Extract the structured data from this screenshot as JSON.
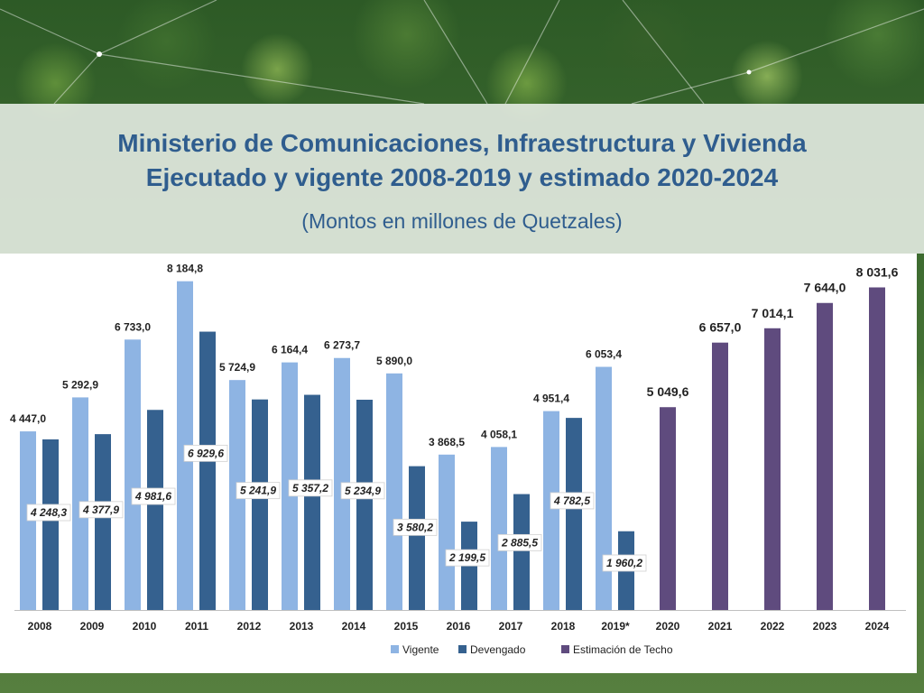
{
  "title_line1": "Ministerio de Comunicaciones, Infraestructura y Vivienda",
  "title_line2": "Ejecutado y vigente 2008-2019 y estimado 2020-2024",
  "subtitle": "(Montos en millones de Quetzales)",
  "colors": {
    "vigente": "#8eb4e3",
    "devengado": "#35618f",
    "estimacion": "#5f4b7e",
    "title": "#2f5d8e"
  },
  "chart_data": {
    "type": "bar",
    "categories": [
      "2008",
      "2009",
      "2010",
      "2011",
      "2012",
      "2013",
      "2014",
      "2015",
      "2016",
      "2017",
      "2018",
      "2019*",
      "2020",
      "2021",
      "2022",
      "2023",
      "2024"
    ],
    "series": [
      {
        "name": "Vigente",
        "values": [
          4447.0,
          5292.9,
          6733.0,
          8184.8,
          5724.9,
          6164.4,
          6273.7,
          5890.0,
          3868.5,
          4058.1,
          4951.4,
          6053.4,
          null,
          null,
          null,
          null,
          null
        ],
        "labels": [
          "4 447,0",
          "5 292,9",
          "6 733,0",
          "8 184,8",
          "5 724,9",
          "6 164,4",
          "6 273,7",
          "5 890,0",
          "3 868,5",
          "4 058,1",
          "4 951,4",
          "6 053,4",
          "",
          "",
          "",
          "",
          ""
        ]
      },
      {
        "name": "Devengado",
        "values": [
          4248.3,
          4377.9,
          4981.6,
          6929.6,
          5241.9,
          5357.2,
          5234.9,
          3580.2,
          2199.5,
          2885.5,
          4782.5,
          1960.2,
          null,
          null,
          null,
          null,
          null
        ],
        "labels": [
          "4 248,3",
          "4 377,9",
          "4 981,6",
          "6 929,6",
          "5 241,9",
          "5 357,2",
          "5 234,9",
          "3 580,2",
          "2 199,5",
          "2 885,5",
          "4 782,5",
          "1 960,2",
          "",
          "",
          "",
          "",
          ""
        ]
      },
      {
        "name": "Estimación de Techo",
        "values": [
          null,
          null,
          null,
          null,
          null,
          null,
          null,
          null,
          null,
          null,
          null,
          null,
          5049.6,
          6657.0,
          7014.1,
          7644.0,
          8031.6
        ],
        "labels": [
          "",
          "",
          "",
          "",
          "",
          "",
          "",
          "",
          "",
          "",
          "",
          "",
          "5 049,6",
          "6 657,0",
          "7 014,1",
          "7 644,0",
          "8 031,6"
        ]
      }
    ],
    "ylim": [
      0,
      8200
    ],
    "grid": false,
    "legend_position": "bottom"
  }
}
